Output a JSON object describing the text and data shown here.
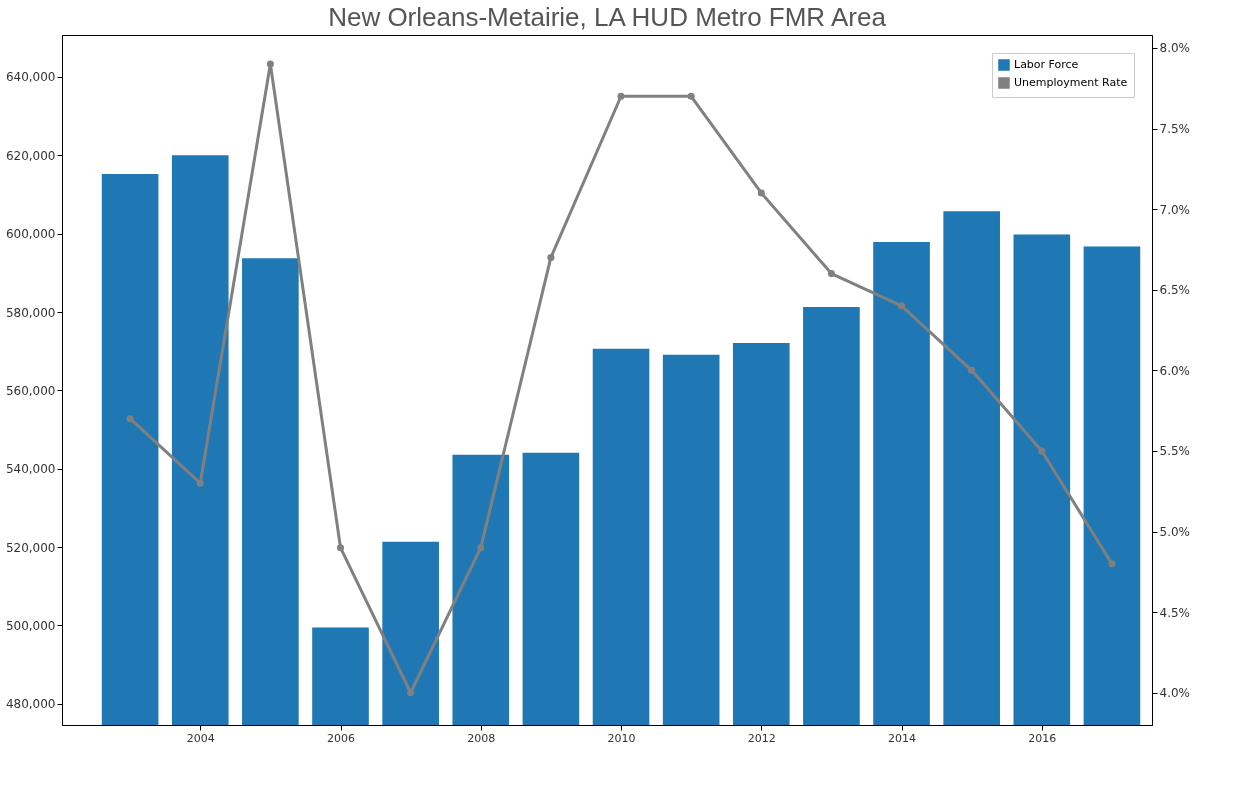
{
  "chart_data": {
    "type": "bar",
    "title": "New Orleans-Metairie, LA HUD Metro FMR Area",
    "x": [
      2003,
      2004,
      2005,
      2006,
      2007,
      2008,
      2009,
      2010,
      2011,
      2012,
      2013,
      2014,
      2015,
      2016,
      2017
    ],
    "series": [
      {
        "name": "Labor Force",
        "color": "#1f77b4",
        "values": [
          615200,
          620000,
          593700,
          499500,
          521400,
          543600,
          544100,
          570600,
          569100,
          572100,
          581300,
          597900,
          605700,
          599800,
          596700
        ]
      },
      {
        "name": "Unemployment Rate",
        "type": "line",
        "axis": "y2",
        "color": "#808080",
        "values": [
          5.7,
          5.3,
          7.9,
          4.9,
          4.0,
          4.9,
          6.7,
          7.7,
          7.7,
          7.1,
          6.6,
          6.4,
          6.0,
          5.5,
          4.8
        ]
      }
    ],
    "xlim": [
      2002.1,
      2017.5
    ],
    "xticks": [
      2004,
      2006,
      2008,
      2010,
      2012,
      2014,
      2016
    ],
    "ylim": [
      474600,
      650700
    ],
    "yticks": [
      {
        "value": 480000,
        "label": "480,000"
      },
      {
        "value": 500000,
        "label": "500,000"
      },
      {
        "value": 520000,
        "label": "520,000"
      },
      {
        "value": 540000,
        "label": "540,000"
      },
      {
        "value": 560000,
        "label": "560,000"
      },
      {
        "value": 580000,
        "label": "580,000"
      },
      {
        "value": 600000,
        "label": "600,000"
      },
      {
        "value": 620000,
        "label": "620,000"
      },
      {
        "value": 640000,
        "label": "640,000"
      }
    ],
    "y2lim": [
      3.8,
      8.08
    ],
    "y2ticks": [
      {
        "value": 4.0,
        "label": "4.0%"
      },
      {
        "value": 4.5,
        "label": "4.5%"
      },
      {
        "value": 5.0,
        "label": "5.0%"
      },
      {
        "value": 5.5,
        "label": "5.5%"
      },
      {
        "value": 6.0,
        "label": "6.0%"
      },
      {
        "value": 6.5,
        "label": "6.5%"
      },
      {
        "value": 7.0,
        "label": "7.0%"
      },
      {
        "value": 7.5,
        "label": "7.5%"
      },
      {
        "value": 8.0,
        "label": "8.0%"
      }
    ],
    "marker": "circle",
    "line_style": "solid",
    "grid": false,
    "legend": "top right"
  }
}
